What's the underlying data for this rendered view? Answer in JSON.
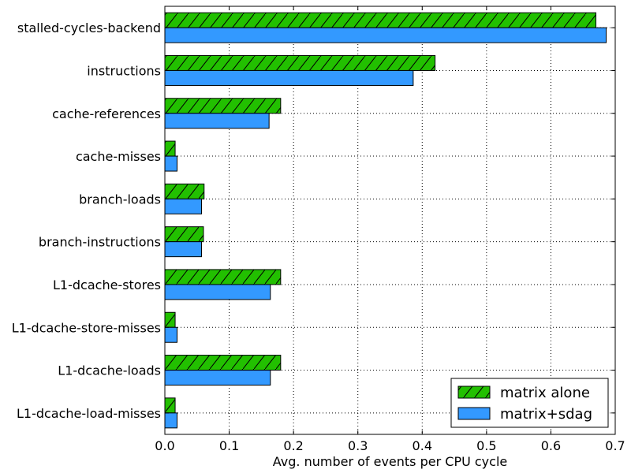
{
  "chart_data": {
    "type": "bar",
    "orientation": "horizontal",
    "title": "",
    "xlabel": "Avg. number of events per CPU cycle",
    "ylabel": "",
    "xlim": [
      0,
      0.7
    ],
    "xticks": [
      "0.0",
      "0.1",
      "0.2",
      "0.3",
      "0.4",
      "0.5",
      "0.6",
      "0.7"
    ],
    "grid": true,
    "legend_position": "bottom-right",
    "categories": [
      "stalled-cycles-backend",
      "instructions",
      "cache-references",
      "cache-misses",
      "branch-loads",
      "branch-instructions",
      "L1-dcache-stores",
      "L1-dcache-store-misses",
      "L1-dcache-loads",
      "L1-dcache-load-misses"
    ],
    "series": [
      {
        "name": "matrix alone",
        "color": "#22c000",
        "pattern": "hatch",
        "values": [
          0.67,
          0.42,
          0.18,
          0.016,
          0.061,
          0.06,
          0.18,
          0.016,
          0.18,
          0.016
        ]
      },
      {
        "name": "matrix+sdag",
        "color": "#3399ff",
        "pattern": "solid",
        "values": [
          0.686,
          0.386,
          0.162,
          0.019,
          0.057,
          0.057,
          0.164,
          0.019,
          0.164,
          0.019
        ]
      }
    ]
  }
}
